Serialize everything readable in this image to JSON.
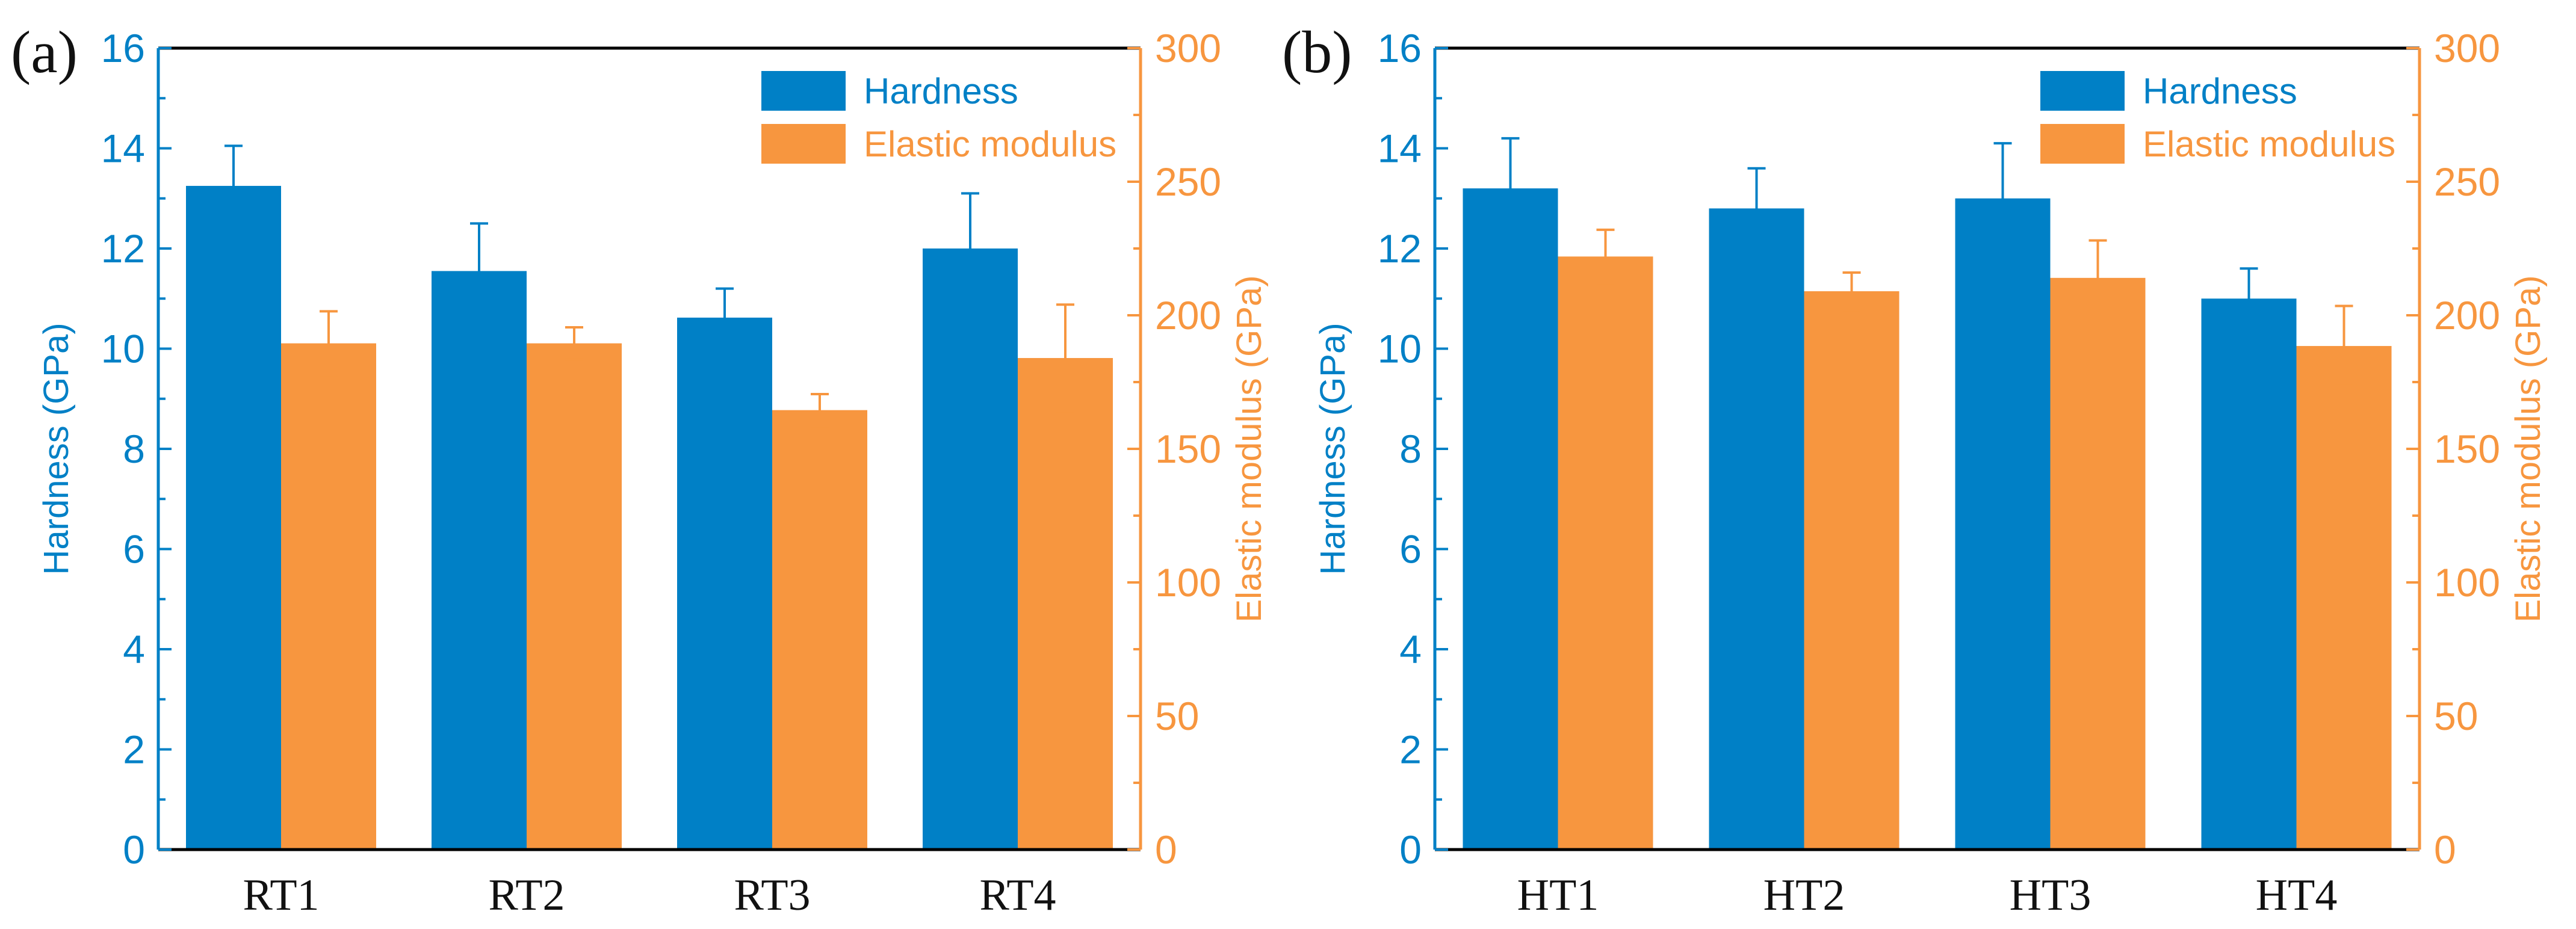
{
  "colors": {
    "hardness": "#0080c6",
    "elastic": "#f7963f",
    "axis": "#000000"
  },
  "chart_data": [
    {
      "type": "bar",
      "panel_label": "(a)",
      "categories": [
        "RT1",
        "RT2",
        "RT3",
        "RT4"
      ],
      "series": [
        {
          "name": "Hardness",
          "axis": "left",
          "values": [
            13.25,
            11.55,
            10.62,
            12.0
          ],
          "errors": [
            0.8,
            0.95,
            0.58,
            1.1
          ]
        },
        {
          "name": "Elastic modulus",
          "axis": "right",
          "values": [
            189.5,
            189.5,
            164.5,
            184.0
          ],
          "errors": [
            12.0,
            6.0,
            6.0,
            20.0
          ]
        }
      ],
      "ylabel": "Hardness (GPa)",
      "y2label": "Elastic modulus (GPa)",
      "ylim": [
        0,
        16
      ],
      "y2lim": [
        0,
        300
      ],
      "yticks": [
        "0",
        "2",
        "4",
        "6",
        "8",
        "10",
        "12",
        "14",
        "16"
      ],
      "y2ticks": [
        "0",
        "50",
        "100",
        "150",
        "200",
        "250",
        "300"
      ],
      "legend": [
        "Hardness",
        "Elastic modulus"
      ],
      "legend_position": "top-right"
    },
    {
      "type": "bar",
      "panel_label": "(b)",
      "categories": [
        "HT1",
        "HT2",
        "HT3",
        "HT4"
      ],
      "series": [
        {
          "name": "Hardness",
          "axis": "left",
          "values": [
            13.2,
            12.8,
            13.0,
            11.0
          ],
          "errors": [
            1.0,
            0.8,
            1.1,
            0.6
          ]
        },
        {
          "name": "Elastic modulus",
          "axis": "right",
          "values": [
            222.0,
            209.0,
            214.0,
            188.5
          ],
          "errors": [
            10.0,
            7.0,
            14.0,
            15.0
          ]
        }
      ],
      "ylabel": "Hardness (GPa)",
      "y2label": "Elastic modulus (GPa)",
      "ylim": [
        0,
        16
      ],
      "y2lim": [
        0,
        300
      ],
      "yticks": [
        "0",
        "2",
        "4",
        "6",
        "8",
        "10",
        "12",
        "14",
        "16"
      ],
      "y2ticks": [
        "0",
        "50",
        "100",
        "150",
        "200",
        "250",
        "300"
      ],
      "legend": [
        "Hardness",
        "Elastic modulus"
      ],
      "legend_position": "top-right"
    }
  ]
}
